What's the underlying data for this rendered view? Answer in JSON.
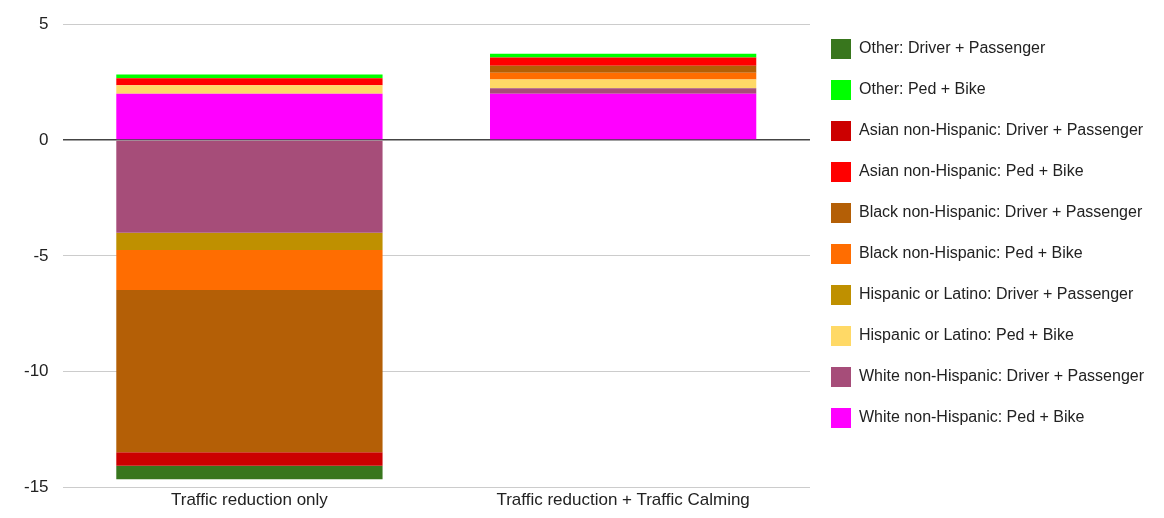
{
  "chart_data": {
    "type": "bar",
    "stacked": true,
    "categories": [
      "Traffic reduction only",
      "Traffic reduction + Traffic Calming"
    ],
    "series": [
      {
        "name": "White non-Hispanic: Ped + Bike",
        "color": "#ff00ff",
        "values": [
          2.0,
          2.0
        ]
      },
      {
        "name": "White non-Hispanic: Driver + Passenger",
        "color": "#a64d79",
        "values": [
          -4.0,
          0.24
        ]
      },
      {
        "name": "Hispanic or Latino: Ped + Bike",
        "color": "#ffd966",
        "values": [
          0.37,
          0.37
        ]
      },
      {
        "name": "Hispanic or Latino: Driver + Passenger",
        "color": "#bf9000",
        "values": [
          -0.75,
          null
        ]
      },
      {
        "name": "Black non-Hispanic: Ped + Bike",
        "color": "#ff6d01",
        "values": [
          -1.72,
          0.3
        ]
      },
      {
        "name": "Black non-Hispanic: Driver + Passenger",
        "color": "#b45f06",
        "values": [
          -7.0,
          0.3
        ]
      },
      {
        "name": "Asian non-Hispanic: Ped + Bike",
        "color": "#ff0000",
        "values": [
          0.3,
          0.35
        ]
      },
      {
        "name": "Asian non-Hispanic: Driver + Passenger",
        "color": "#cc0000",
        "values": [
          -0.59,
          null
        ]
      },
      {
        "name": "Other: Ped + Bike",
        "color": "#00ff00",
        "values": [
          0.16,
          0.17
        ]
      },
      {
        "name": "Other: Driver + Passenger",
        "color": "#38761d",
        "values": [
          -0.58,
          null
        ]
      }
    ],
    "ylim": [
      -15,
      5
    ],
    "yticks": [
      -15,
      -10,
      -5,
      0,
      5
    ],
    "grid": "y",
    "legend": "right"
  }
}
